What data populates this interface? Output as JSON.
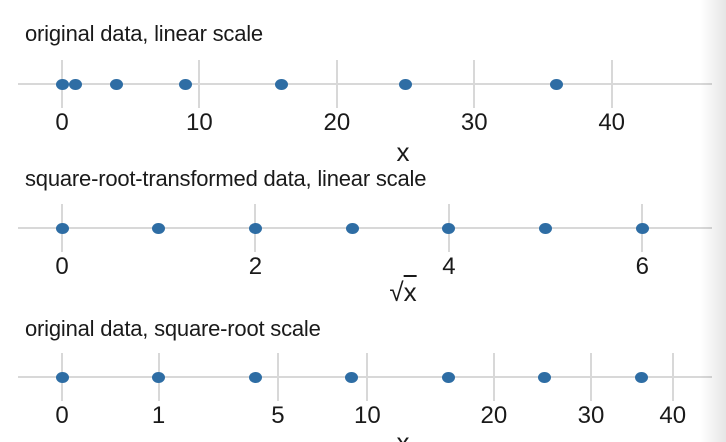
{
  "page": {
    "background": "#ffffff",
    "description_labels": []
  },
  "colors": {
    "point": "#2E6DA4",
    "axis": "#d8d8d8",
    "text": "#1a1a1a"
  },
  "chart_data": [
    {
      "type": "strip",
      "title": "original data, linear scale",
      "xlabel": "x",
      "scale": "linear",
      "points": [
        0,
        1,
        4,
        9,
        16,
        25,
        36
      ],
      "x_ticks": [
        0,
        10,
        20,
        30,
        40
      ],
      "xlim": [
        0,
        47.3
      ],
      "grid": false,
      "legend": "none"
    },
    {
      "type": "strip",
      "title": "square-root-transformed data, linear scale",
      "xlabel": "√x",
      "scale": "linear",
      "points": [
        0,
        1,
        2,
        3,
        4,
        5,
        6
      ],
      "x_ticks": [
        0,
        2,
        4,
        6
      ],
      "xlim": [
        0,
        6.72
      ],
      "grid": false,
      "legend": "none"
    },
    {
      "type": "strip",
      "title": "original data, square-root scale",
      "xlabel": "x",
      "scale": "sqrt",
      "points": [
        0,
        1,
        4,
        9,
        16,
        25,
        36
      ],
      "x_ticks": [
        0,
        1,
        5,
        10,
        20,
        30,
        40
      ],
      "xlim": [
        0,
        45.3
      ],
      "grid": false,
      "legend": "none"
    }
  ]
}
